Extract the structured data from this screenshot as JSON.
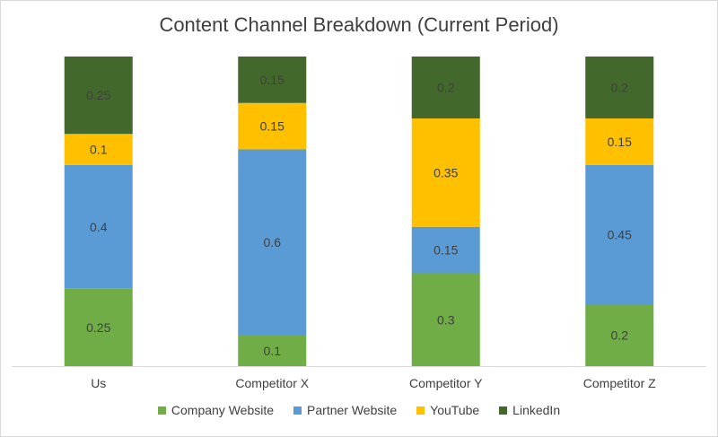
{
  "chart_data": {
    "type": "bar",
    "stacked": true,
    "title": "Content Channel Breakdown (Current Period)",
    "categories": [
      "Us",
      "Competitor X",
      "Competitor Y",
      "Competitor Z"
    ],
    "series": [
      {
        "name": "Company Website",
        "color": "#70ad47",
        "values": [
          0.25,
          0.1,
          0.3,
          0.2
        ]
      },
      {
        "name": "Partner Website",
        "color": "#5b9bd5",
        "values": [
          0.4,
          0.6,
          0.15,
          0.45
        ]
      },
      {
        "name": "YouTube",
        "color": "#ffc000",
        "values": [
          0.1,
          0.15,
          0.35,
          0.15
        ]
      },
      {
        "name": "LinkedIn",
        "color": "#43682b",
        "values": [
          0.25,
          0.15,
          0.2,
          0.2
        ]
      }
    ],
    "ylim": [
      0,
      1
    ],
    "grid": false,
    "legend": "bottom"
  }
}
